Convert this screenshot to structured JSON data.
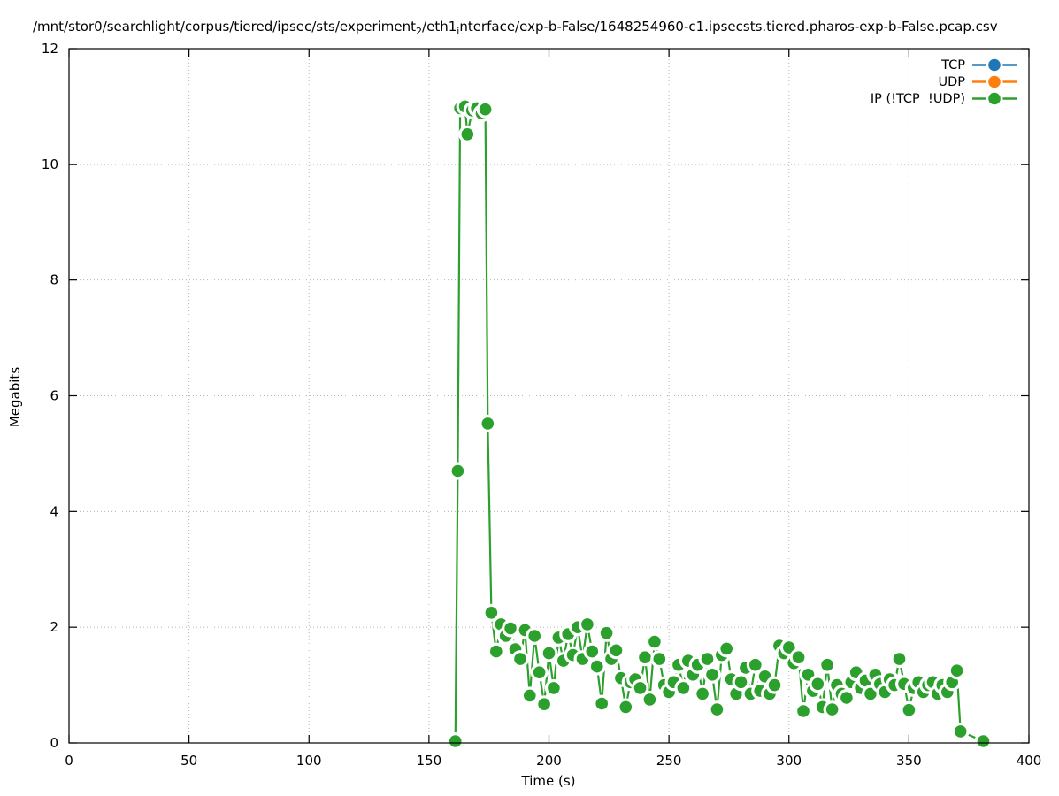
{
  "title": {
    "part1": "/mnt/stor0/searchlight/corpus/tiered/ipsec/sts/experiment",
    "sub1": "2",
    "part2": "/eth1",
    "sub2": "i",
    "part3": "nterface/exp-b-False/1648254960-c1.ipsecsts.tiered.pharos-exp-b-False.pcap.csv"
  },
  "axes": {
    "xlabel": "Time (s)",
    "ylabel": "Megabits"
  },
  "legend": {
    "position": "top-right",
    "items": [
      {
        "label": "TCP",
        "color": "#1f77b4"
      },
      {
        "label": "UDP",
        "color": "#ff7f0e"
      },
      {
        "label": "IP (!TCP  !UDP)",
        "color": "#2ca02c"
      }
    ]
  },
  "chart_data": {
    "type": "line",
    "title": "/mnt/stor0/searchlight/corpus/tiered/ipsec/sts/experiment_2/eth1_interface/exp-b-False/1648254960-c1.ipsecsts.tiered.pharos-exp-b-False.pcap.csv",
    "xlabel": "Time (s)",
    "ylabel": "Megabits",
    "xlim": [
      0,
      400
    ],
    "ylim": [
      0,
      12
    ],
    "xticks": [
      0,
      50,
      100,
      150,
      200,
      250,
      300,
      350,
      400
    ],
    "yticks": [
      0,
      2,
      4,
      6,
      8,
      10,
      12
    ],
    "grid": true,
    "grid_style": "dotted",
    "legend_position": "top-right",
    "marker": "filled-circle-with-white-halo",
    "series": [
      {
        "name": "TCP",
        "color": "#1f77b4",
        "points": []
      },
      {
        "name": "UDP",
        "color": "#ff7f0e",
        "points": []
      },
      {
        "name": "IP (!TCP  !UDP)",
        "color": "#2ca02c",
        "points": [
          [
            161,
            0.03
          ],
          [
            162,
            4.7
          ],
          [
            163,
            10.97
          ],
          [
            165,
            11.0
          ],
          [
            166,
            10.52
          ],
          [
            168,
            10.93
          ],
          [
            170,
            10.97
          ],
          [
            172,
            10.88
          ],
          [
            173.5,
            10.95
          ],
          [
            174.5,
            5.52
          ],
          [
            176,
            2.25
          ],
          [
            178,
            1.58
          ],
          [
            180,
            2.05
          ],
          [
            182,
            1.85
          ],
          [
            184,
            1.98
          ],
          [
            186,
            1.62
          ],
          [
            188,
            1.45
          ],
          [
            190,
            1.95
          ],
          [
            192,
            0.82
          ],
          [
            194,
            1.85
          ],
          [
            196,
            1.22
          ],
          [
            198,
            0.67
          ],
          [
            200,
            1.55
          ],
          [
            202,
            0.95
          ],
          [
            204,
            1.82
          ],
          [
            206,
            1.42
          ],
          [
            208,
            1.88
          ],
          [
            210,
            1.52
          ],
          [
            212,
            2.0
          ],
          [
            214,
            1.45
          ],
          [
            216,
            2.05
          ],
          [
            218,
            1.58
          ],
          [
            220,
            1.32
          ],
          [
            222,
            0.68
          ],
          [
            224,
            1.9
          ],
          [
            226,
            1.45
          ],
          [
            228,
            1.6
          ],
          [
            230,
            1.12
          ],
          [
            232,
            0.62
          ],
          [
            234,
            1.05
          ],
          [
            236,
            1.1
          ],
          [
            238,
            0.95
          ],
          [
            240,
            1.48
          ],
          [
            242,
            0.75
          ],
          [
            244,
            1.75
          ],
          [
            246,
            1.45
          ],
          [
            248,
            1.0
          ],
          [
            250,
            0.88
          ],
          [
            252,
            1.05
          ],
          [
            254,
            1.35
          ],
          [
            256,
            0.95
          ],
          [
            258,
            1.42
          ],
          [
            260,
            1.18
          ],
          [
            262,
            1.35
          ],
          [
            264,
            0.85
          ],
          [
            266,
            1.45
          ],
          [
            268,
            1.18
          ],
          [
            270,
            0.58
          ],
          [
            272,
            1.52
          ],
          [
            274,
            1.63
          ],
          [
            276,
            1.1
          ],
          [
            278,
            0.85
          ],
          [
            280,
            1.05
          ],
          [
            282,
            1.3
          ],
          [
            284,
            0.85
          ],
          [
            286,
            1.35
          ],
          [
            288,
            0.9
          ],
          [
            290,
            1.15
          ],
          [
            292,
            0.85
          ],
          [
            294,
            1.0
          ],
          [
            296,
            1.68
          ],
          [
            298,
            1.55
          ],
          [
            300,
            1.65
          ],
          [
            302,
            1.38
          ],
          [
            304,
            1.48
          ],
          [
            306,
            0.55
          ],
          [
            308,
            1.18
          ],
          [
            310,
            0.9
          ],
          [
            312,
            1.02
          ],
          [
            314,
            0.62
          ],
          [
            316,
            1.35
          ],
          [
            318,
            0.58
          ],
          [
            320,
            1.0
          ],
          [
            322,
            0.85
          ],
          [
            324,
            0.78
          ],
          [
            326,
            1.05
          ],
          [
            328,
            1.22
          ],
          [
            330,
            0.95
          ],
          [
            332,
            1.08
          ],
          [
            334,
            0.85
          ],
          [
            336,
            1.18
          ],
          [
            338,
            1.02
          ],
          [
            340,
            0.88
          ],
          [
            342,
            1.1
          ],
          [
            344,
            1.0
          ],
          [
            346,
            1.45
          ],
          [
            348,
            1.02
          ],
          [
            350,
            0.57
          ],
          [
            352,
            0.95
          ],
          [
            354,
            1.05
          ],
          [
            356,
            0.88
          ],
          [
            358,
            1.0
          ],
          [
            360,
            1.05
          ],
          [
            362,
            0.85
          ],
          [
            364,
            1.0
          ],
          [
            366,
            0.88
          ],
          [
            368,
            1.05
          ],
          [
            370,
            1.25
          ],
          [
            371.5,
            0.2
          ],
          [
            381,
            0.03
          ]
        ]
      }
    ]
  }
}
